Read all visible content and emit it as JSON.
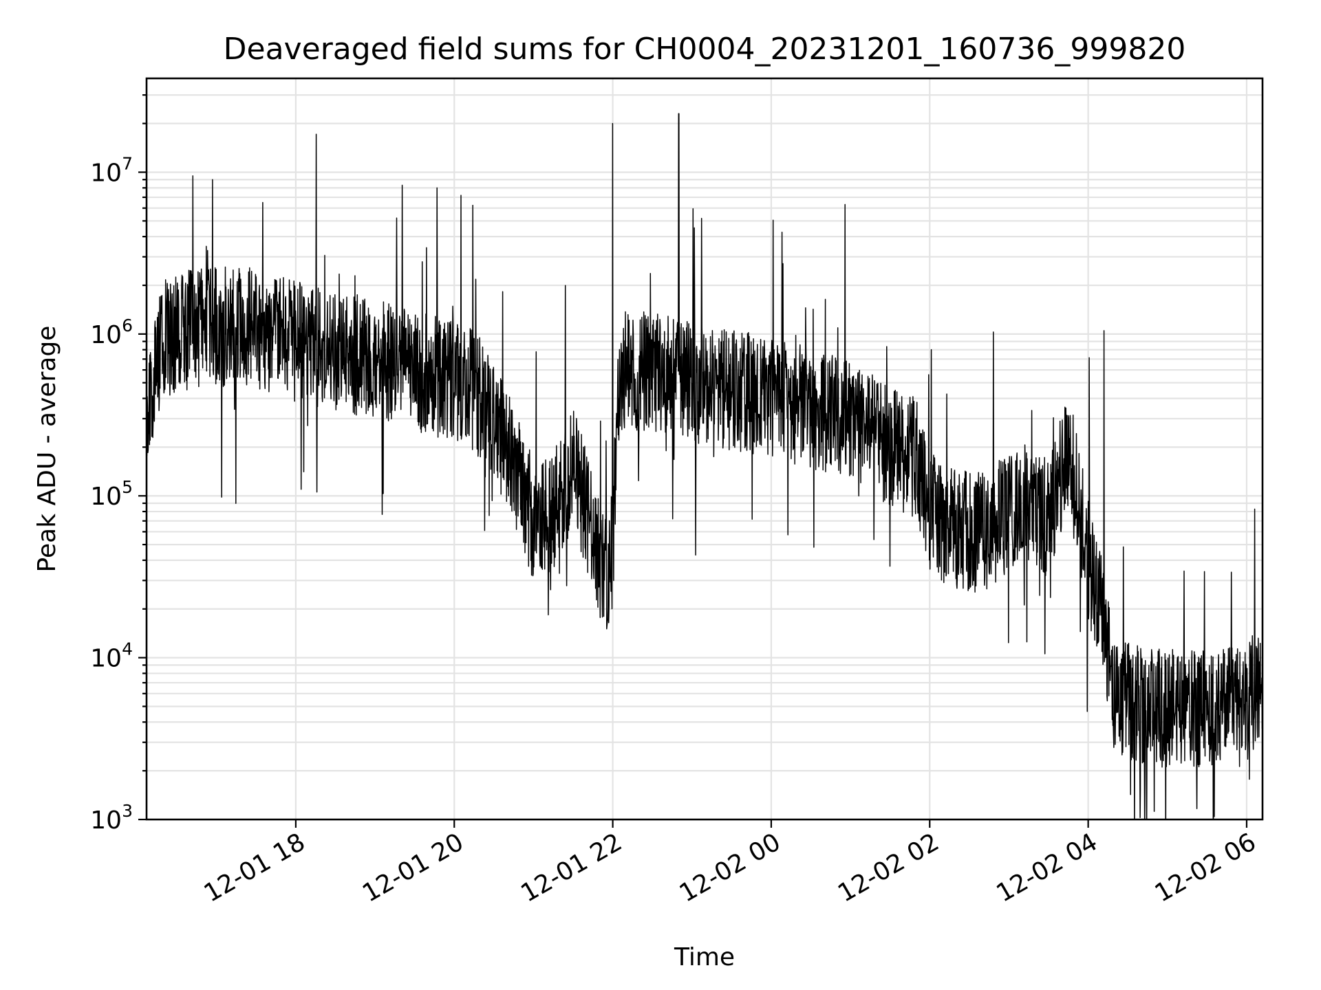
{
  "chart_data": {
    "type": "line",
    "title": "Deaveraged field sums for CH0004_20231201_160736_999820",
    "xlabel": "Time",
    "ylabel": "Peak ADU - average",
    "yscale": "log",
    "grid": true,
    "xlim": [
      "2023-12-01 16:07",
      "2023-12-02 06:12"
    ],
    "ylim": [
      1000,
      38000000
    ],
    "x_ticks": [
      {
        "value": "2023-12-01 18:00",
        "label": "12-01 18"
      },
      {
        "value": "2023-12-01 20:00",
        "label": "12-01 20"
      },
      {
        "value": "2023-12-01 22:00",
        "label": "12-01 22"
      },
      {
        "value": "2023-12-02 00:00",
        "label": "12-02 00"
      },
      {
        "value": "2023-12-02 02:00",
        "label": "12-02 02"
      },
      {
        "value": "2023-12-02 04:00",
        "label": "12-02 04"
      },
      {
        "value": "2023-12-02 06:00",
        "label": "12-02 06"
      }
    ],
    "y_ticks": [
      {
        "value": 1000,
        "base": "10",
        "exp": "3"
      },
      {
        "value": 10000,
        "base": "10",
        "exp": "4"
      },
      {
        "value": 100000,
        "base": "10",
        "exp": "5"
      },
      {
        "value": 1000000,
        "base": "10",
        "exp": "6"
      },
      {
        "value": 10000000,
        "base": "10",
        "exp": "7"
      }
    ],
    "series": [
      {
        "color": "#000000",
        "x": [
          "2023-12-01 16:07",
          "2023-12-01 16:10",
          "2023-12-01 16:15",
          "2023-12-01 16:20",
          "2023-12-01 16:30",
          "2023-12-01 16:45",
          "2023-12-01 17:00",
          "2023-12-01 17:15",
          "2023-12-01 17:30",
          "2023-12-01 17:45",
          "2023-12-01 18:00",
          "2023-12-01 18:30",
          "2023-12-01 19:00",
          "2023-12-01 19:30",
          "2023-12-01 20:00",
          "2023-12-01 20:15",
          "2023-12-01 20:30",
          "2023-12-01 20:45",
          "2023-12-01 21:00",
          "2023-12-01 21:15",
          "2023-12-01 21:30",
          "2023-12-01 21:45",
          "2023-12-01 21:55",
          "2023-12-01 22:00",
          "2023-12-01 22:05",
          "2023-12-01 22:20",
          "2023-12-01 22:40",
          "2023-12-01 23:00",
          "2023-12-01 23:30",
          "2023-12-02 00:00",
          "2023-12-02 00:30",
          "2023-12-02 01:00",
          "2023-12-02 01:30",
          "2023-12-02 01:50",
          "2023-12-02 02:00",
          "2023-12-02 02:20",
          "2023-12-02 02:40",
          "2023-12-02 03:00",
          "2023-12-02 03:15",
          "2023-12-02 03:30",
          "2023-12-02 03:45",
          "2023-12-02 04:00",
          "2023-12-02 04:10",
          "2023-12-02 04:20",
          "2023-12-02 04:40",
          "2023-12-02 05:00",
          "2023-12-02 05:20",
          "2023-12-02 05:40",
          "2023-12-02 06:00",
          "2023-12-02 06:12"
        ],
        "values": [
          200000,
          400000,
          700000,
          900000,
          1000000,
          1100000,
          1100000,
          1100000,
          1100000,
          1000000,
          900000,
          800000,
          700000,
          600000,
          500000,
          450000,
          300000,
          150000,
          70000,
          80000,
          150000,
          60000,
          30000,
          50000,
          600000,
          600000,
          550000,
          500000,
          450000,
          400000,
          350000,
          300000,
          200000,
          170000,
          80000,
          60000,
          60000,
          80000,
          90000,
          70000,
          200000,
          40000,
          20000,
          6000,
          5000,
          5000,
          5000,
          5000,
          5000,
          8000
        ]
      }
    ],
    "spikes": [
      {
        "x": "2023-12-01 16:42",
        "y": 9500000
      },
      {
        "x": "2023-12-01 16:57",
        "y": 9000000
      },
      {
        "x": "2023-12-01 17:35",
        "y": 6500000
      },
      {
        "x": "2023-12-01 19:47",
        "y": 8000000
      },
      {
        "x": "2023-12-01 22:00",
        "y": 20000000
      },
      {
        "x": "2023-12-01 22:50",
        "y": 23000000
      },
      {
        "x": "2023-12-02 04:12",
        "y": 1050000
      }
    ]
  }
}
